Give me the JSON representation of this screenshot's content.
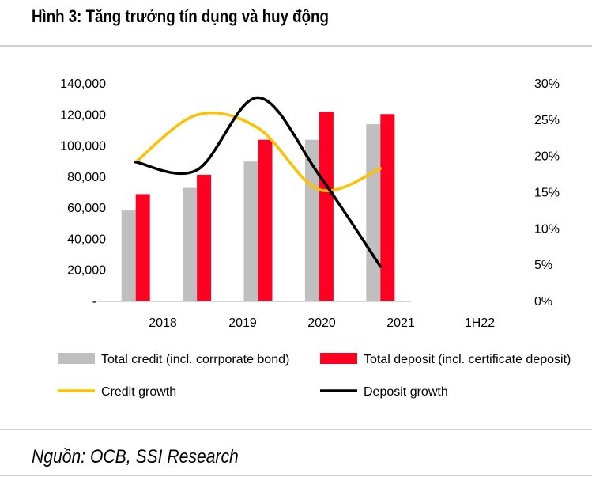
{
  "title": "Hình 3: Tăng trưởng tín dụng và huy động",
  "source": "Nguồn: OCB, SSI Research",
  "chart_data": {
    "type": "bar+line",
    "categories": [
      "2018",
      "2019",
      "2020",
      "2021",
      "1H22"
    ],
    "series": [
      {
        "name": "Total credit (incl. corrporate bond)",
        "type": "bar",
        "axis": "left",
        "color": "#bfbfbf",
        "values": [
          58000,
          72500,
          89500,
          103500,
          113500
        ]
      },
      {
        "name": "Total deposit (incl. certificate deposit)",
        "type": "bar",
        "axis": "left",
        "color": "#ff0022",
        "values": [
          68500,
          81000,
          103500,
          121500,
          120000
        ]
      },
      {
        "name": "Credit growth",
        "type": "line",
        "axis": "right",
        "color": "#ffc000",
        "values": [
          19.1,
          25.6,
          23.8,
          15.3,
          18.2
        ]
      },
      {
        "name": "Deposit growth",
        "type": "line",
        "axis": "right",
        "color": "#000000",
        "values": [
          19.1,
          18.0,
          28.0,
          17.3,
          4.7
        ]
      }
    ],
    "left_axis": {
      "ylim": [
        0,
        140000
      ],
      "ticks": [
        "-",
        "20,000",
        "40,000",
        "60,000",
        "80,000",
        "100,000",
        "120,000",
        "140,000"
      ]
    },
    "right_axis": {
      "ylim": [
        0,
        30
      ],
      "ticks": [
        "0%",
        "5%",
        "10%",
        "15%",
        "20%",
        "25%",
        "30%"
      ]
    },
    "grid": false,
    "legend": "bottom"
  }
}
